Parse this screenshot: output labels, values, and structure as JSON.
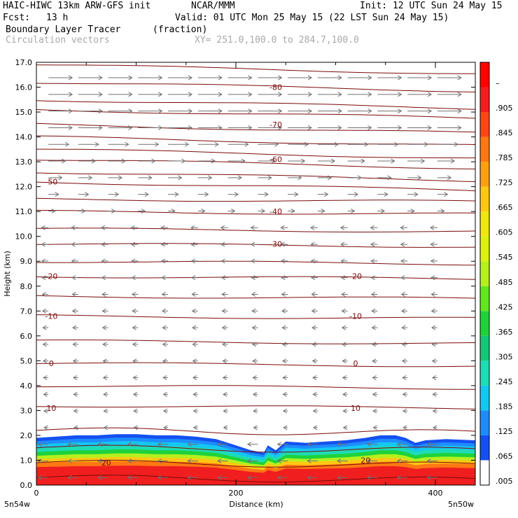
{
  "header": {
    "model": "HAIC-HIWC 13km ARW-GFS init",
    "org": "NCAR/MMM",
    "init": "Init: 12 UTC Sun 24 May 15",
    "fcst_label": "Fcst:",
    "fcst_value": "13 h",
    "valid": "Valid: 01 UTC Mon 25 May 15 (22 LST Sun 24 May 15)",
    "field": "Boundary Layer Tracer",
    "units": "(fraction)",
    "vectors": "Circulation vectors",
    "xy": "XY= 251.0,100.0 to 284.7,100.0"
  },
  "chart_data": {
    "type": "heatmap",
    "xlabel": "Distance (km)",
    "ylabel": "Height (km)",
    "xlim": [
      0,
      440
    ],
    "ylim": [
      0.0,
      17.0
    ],
    "x_ticks": [
      0,
      200,
      400
    ],
    "y_ticks": [
      "0.0",
      "1.0",
      "2.0",
      "3.0",
      "4.0",
      "5.0",
      "6.0",
      "7.0",
      "8.0",
      "9.0",
      "10.0",
      "11.0",
      "12.0",
      "13.0",
      "14.0",
      "15.0",
      "16.0",
      "17.0"
    ],
    "endpoint_labels": [
      "5n54w",
      "5n50w"
    ],
    "colorbar": {
      "labels": [
        ".005",
        ".065",
        ".125",
        ".185",
        ".245",
        ".305",
        ".365",
        ".425",
        ".485",
        ".545",
        ".605",
        ".665",
        ".725",
        ".785",
        ".845",
        ".905",
        "–"
      ],
      "colors": [
        "#ffffff",
        "#1450f0",
        "#1e8cff",
        "#14c8f0",
        "#1edcb4",
        "#14c878",
        "#1ed23c",
        "#64e61e",
        "#b4f01e",
        "#dcf014",
        "#f0e614",
        "#ffc814",
        "#ffa014",
        "#ff7814",
        "#ff4614",
        "#f01e1e",
        "#ff0000"
      ]
    },
    "contour_labels": [
      {
        "x": 240,
        "y": 16.0,
        "text": "-80"
      },
      {
        "x": 240,
        "y": 14.5,
        "text": "-70"
      },
      {
        "x": 240,
        "y": 13.1,
        "text": "-60"
      },
      {
        "x": 15,
        "y": 12.2,
        "text": "-50"
      },
      {
        "x": 240,
        "y": 11.0,
        "text": "-40"
      },
      {
        "x": 240,
        "y": 9.7,
        "text": "-30"
      },
      {
        "x": 15,
        "y": 8.4,
        "text": "-20"
      },
      {
        "x": 320,
        "y": 8.4,
        "text": "-20"
      },
      {
        "x": 15,
        "y": 6.8,
        "text": "-10"
      },
      {
        "x": 320,
        "y": 6.8,
        "text": "-10"
      },
      {
        "x": 15,
        "y": 4.9,
        "text": "0"
      },
      {
        "x": 320,
        "y": 4.9,
        "text": "0"
      },
      {
        "x": 15,
        "y": 3.1,
        "text": "10"
      },
      {
        "x": 320,
        "y": 3.1,
        "text": "10"
      },
      {
        "x": 70,
        "y": 0.9,
        "text": "20"
      },
      {
        "x": 330,
        "y": 1.0,
        "text": "20"
      }
    ],
    "contour_levels_height": [
      0.3,
      0.9,
      1.5,
      2.2,
      3.2,
      4.0,
      4.9,
      5.8,
      6.8,
      7.6,
      8.4,
      9.0,
      9.7,
      10.3,
      11.0,
      11.5,
      12.2,
      12.6,
      13.1,
      13.5,
      14.0,
      14.5,
      15.1,
      15.5,
      16.2,
      16.9
    ],
    "tracer_top_km": [
      [
        0,
        1.9
      ],
      [
        20,
        1.95
      ],
      [
        40,
        2.0
      ],
      [
        60,
        2.0
      ],
      [
        80,
        2.05
      ],
      [
        100,
        2.05
      ],
      [
        120,
        2.0
      ],
      [
        140,
        2.0
      ],
      [
        160,
        1.95
      ],
      [
        180,
        1.85
      ],
      [
        200,
        1.6
      ],
      [
        215,
        1.4
      ],
      [
        228,
        1.3
      ],
      [
        232,
        1.6
      ],
      [
        240,
        1.4
      ],
      [
        250,
        1.75
      ],
      [
        270,
        1.7
      ],
      [
        290,
        1.75
      ],
      [
        310,
        1.8
      ],
      [
        330,
        1.9
      ],
      [
        345,
        2.0
      ],
      [
        360,
        2.0
      ],
      [
        370,
        1.9
      ],
      [
        380,
        1.7
      ],
      [
        390,
        1.8
      ],
      [
        410,
        1.85
      ],
      [
        440,
        1.8
      ]
    ]
  }
}
